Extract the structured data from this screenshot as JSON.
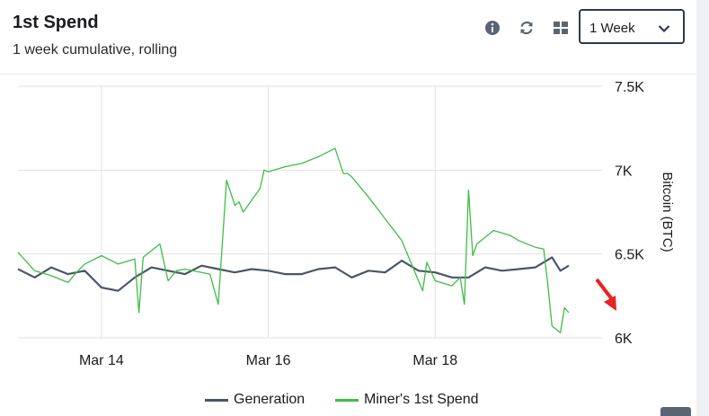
{
  "header": {
    "title": "1st Spend",
    "subtitle": "1 week cumulative, rolling",
    "icons": [
      "info-icon",
      "refresh-icon",
      "grid-icon"
    ]
  },
  "timeframe": {
    "selected": "1 Week"
  },
  "colors": {
    "generation": "#4b5568",
    "spend": "#3fbd46",
    "annotation_arrow": "#e8231f",
    "grid": "#e3e3e3"
  },
  "chart_data": {
    "type": "line",
    "title": "1st Spend",
    "subtitle": "1 week cumulative, rolling",
    "ylabel": "Bitcoin (BTC)",
    "ylim": [
      6000,
      7500
    ],
    "xlim": [
      13.0,
      20.0
    ],
    "yticks": [
      6000,
      6500,
      7000,
      7500
    ],
    "ytick_labels": [
      "6K",
      "6.5K",
      "7K",
      "7.5K"
    ],
    "xticks": [
      14,
      16,
      18
    ],
    "xtick_labels": [
      "Mar 14",
      "Mar 16",
      "Mar 18"
    ],
    "grid": true,
    "legend_position": "bottom-center",
    "series": [
      {
        "name": "Generation",
        "x": [
          13.0,
          13.2,
          13.4,
          13.6,
          13.8,
          14.0,
          14.2,
          14.4,
          14.6,
          14.8,
          15.0,
          15.2,
          15.4,
          15.6,
          15.8,
          16.0,
          16.2,
          16.4,
          16.6,
          16.8,
          17.0,
          17.2,
          17.4,
          17.6,
          17.8,
          18.0,
          18.2,
          18.4,
          18.6,
          18.8,
          19.0,
          19.2,
          19.4,
          19.5,
          19.6
        ],
        "y": [
          6410,
          6360,
          6420,
          6380,
          6400,
          6300,
          6280,
          6360,
          6420,
          6400,
          6380,
          6430,
          6410,
          6390,
          6410,
          6400,
          6380,
          6380,
          6410,
          6420,
          6360,
          6400,
          6390,
          6460,
          6400,
          6390,
          6360,
          6360,
          6420,
          6400,
          6410,
          6420,
          6480,
          6400,
          6430
        ]
      },
      {
        "name": "Miner's 1st Spend",
        "x": [
          13.0,
          13.2,
          13.4,
          13.6,
          13.7,
          13.8,
          14.0,
          14.2,
          14.4,
          14.45,
          14.5,
          14.7,
          14.8,
          14.9,
          15.0,
          15.3,
          15.4,
          15.5,
          15.6,
          15.65,
          15.7,
          15.9,
          15.95,
          16.0,
          16.2,
          16.4,
          16.6,
          16.8,
          16.9,
          16.95,
          17.0,
          17.2,
          17.4,
          17.6,
          17.85,
          17.9,
          18.0,
          18.2,
          18.3,
          18.35,
          18.4,
          18.45,
          18.5,
          18.7,
          18.9,
          19.0,
          19.2,
          19.3,
          19.35,
          19.4,
          19.5,
          19.55,
          19.6
        ],
        "y": [
          6510,
          6400,
          6370,
          6330,
          6390,
          6440,
          6490,
          6440,
          6470,
          6150,
          6480,
          6560,
          6340,
          6400,
          6410,
          6380,
          6200,
          6940,
          6790,
          6810,
          6750,
          6890,
          7000,
          6990,
          7020,
          7040,
          7080,
          7130,
          6980,
          6980,
          6960,
          6840,
          6710,
          6580,
          6280,
          6450,
          6340,
          6310,
          6360,
          6200,
          6880,
          6490,
          6560,
          6640,
          6610,
          6580,
          6540,
          6530,
          6320,
          6070,
          6030,
          6180,
          6150
        ]
      }
    ],
    "annotations": [
      {
        "type": "arrow",
        "points_to": "Miner's 1st Spend drop",
        "color": "#e8231f"
      }
    ]
  }
}
